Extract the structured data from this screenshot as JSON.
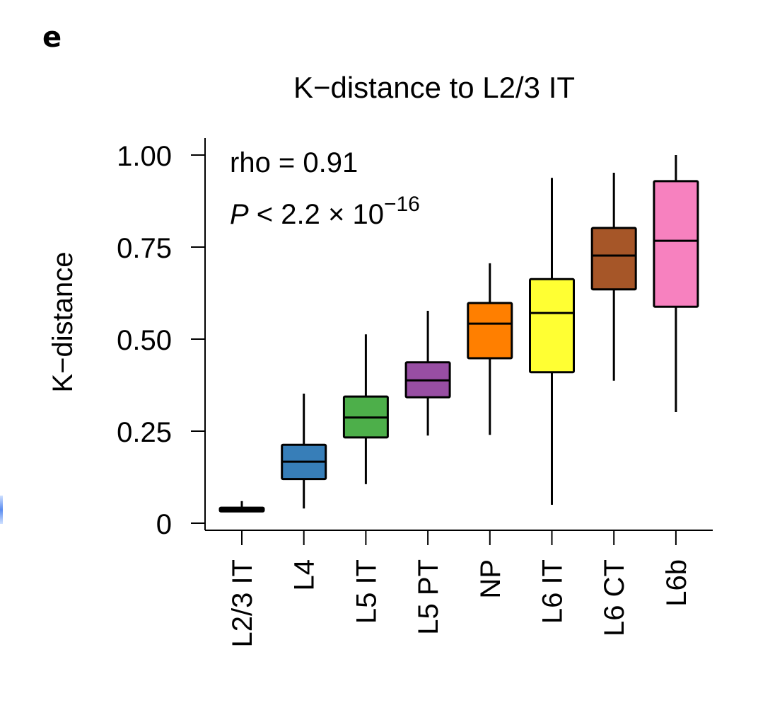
{
  "panel_label": "e",
  "chart_data": {
    "type": "box",
    "title": "K−distance to L2/3 IT",
    "xlabel": "",
    "ylabel": "K−distance",
    "ylim": [
      0,
      1.0
    ],
    "yticks": [
      0,
      0.25,
      0.5,
      0.75,
      1.0
    ],
    "ytick_labels": [
      "0",
      "0.25",
      "0.50",
      "0.75",
      "1.00"
    ],
    "categories": [
      "L2/3 IT",
      "L4",
      "L5 IT",
      "L5 PT",
      "NP",
      "L6 IT",
      "L6 CT",
      "L6b"
    ],
    "series": [
      {
        "name": "L2/3 IT",
        "color": "#000000",
        "whisker_low": 0.03,
        "q1": 0.032,
        "median": 0.037,
        "q3": 0.042,
        "whisker_high": 0.06
      },
      {
        "name": "L4",
        "color": "#377EB8",
        "whisker_low": 0.04,
        "q1": 0.12,
        "median": 0.167,
        "q3": 0.213,
        "whisker_high": 0.352
      },
      {
        "name": "L5 IT",
        "color": "#4DAF4A",
        "whisker_low": 0.106,
        "q1": 0.233,
        "median": 0.287,
        "q3": 0.344,
        "whisker_high": 0.513
      },
      {
        "name": "L5 PT",
        "color": "#984EA3",
        "whisker_low": 0.238,
        "q1": 0.342,
        "median": 0.388,
        "q3": 0.437,
        "whisker_high": 0.577
      },
      {
        "name": "NP",
        "color": "#FF7F00",
        "whisker_low": 0.24,
        "q1": 0.448,
        "median": 0.542,
        "q3": 0.598,
        "whisker_high": 0.706
      },
      {
        "name": "L6 IT",
        "color": "#FFFF33",
        "whisker_low": 0.05,
        "q1": 0.41,
        "median": 0.571,
        "q3": 0.663,
        "whisker_high": 0.938
      },
      {
        "name": "L6 CT",
        "color": "#A65628",
        "whisker_low": 0.387,
        "q1": 0.635,
        "median": 0.727,
        "q3": 0.802,
        "whisker_high": 0.952
      },
      {
        "name": "L6b",
        "color": "#F781BF",
        "whisker_low": 0.302,
        "q1": 0.588,
        "median": 0.767,
        "q3": 0.929,
        "whisker_high": 1.0
      }
    ],
    "annotations": {
      "rho": "rho = 0.91",
      "p_prefix": "P",
      "p_rest": " < 2.2 × 10",
      "p_exponent": "−16"
    },
    "grid": false,
    "legend": "none"
  }
}
